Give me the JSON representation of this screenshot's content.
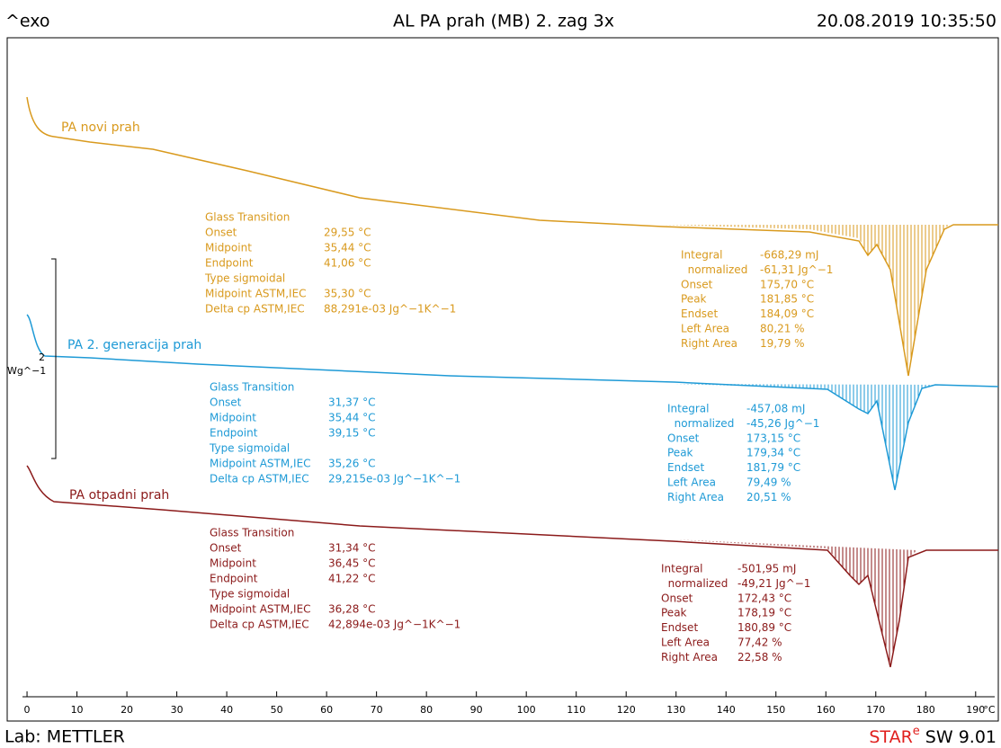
{
  "chart_data": {
    "type": "line",
    "title": "AL PA prah (MB) 2. zag 3x",
    "header_left": "^exo",
    "header_right": "20.08.2019 10:35:50",
    "xlim": [
      -1,
      194
    ],
    "xticks": [
      0,
      10,
      20,
      30,
      40,
      50,
      60,
      70,
      80,
      90,
      100,
      110,
      120,
      130,
      140,
      150,
      160,
      170,
      180,
      190
    ],
    "x_unit": "°C",
    "scale_bar": {
      "value": "2",
      "unit": "Wg^−1"
    },
    "series": [
      {
        "name": "PA novi prah",
        "color": "#d99a1e",
        "glass_transition": [
          [
            "Glass Transition",
            ""
          ],
          [
            "Onset",
            "29,55 °C"
          ],
          [
            "Midpoint",
            "35,44 °C"
          ],
          [
            "Endpoint",
            "41,06 °C"
          ],
          [
            "Type sigmoidal",
            ""
          ],
          [
            "Midpoint ASTM,IEC",
            "35,30 °C"
          ],
          [
            "Delta cp ASTM,IEC",
            "88,291e-03 Jg^−1K^−1"
          ]
        ],
        "integral": [
          [
            "Integral",
            "-668,29 mJ"
          ],
          [
            "  normalized",
            "-61,31 Jg^−1"
          ],
          [
            "Onset",
            "175,70 °C"
          ],
          [
            "Peak",
            "181,85 °C"
          ],
          [
            "Endset",
            "184,09 °C"
          ],
          [
            "Left Area",
            "80,21 %"
          ],
          [
            "Right Area",
            "19,79 %"
          ]
        ]
      },
      {
        "name": "PA 2. generacija prah",
        "color": "#1e9ad6",
        "glass_transition": [
          [
            "Glass Transition",
            ""
          ],
          [
            "Onset",
            "31,37 °C"
          ],
          [
            "Midpoint",
            "35,44 °C"
          ],
          [
            "Endpoint",
            "39,15 °C"
          ],
          [
            "Type sigmoidal",
            ""
          ],
          [
            "Midpoint ASTM,IEC",
            "35,26 °C"
          ],
          [
            "Delta cp ASTM,IEC",
            "29,215e-03 Jg^−1K^−1"
          ]
        ],
        "integral": [
          [
            "Integral",
            "-457,08 mJ"
          ],
          [
            "  normalized",
            "-45,26 Jg^−1"
          ],
          [
            "Onset",
            "173,15 °C"
          ],
          [
            "Peak",
            "179,34 °C"
          ],
          [
            "Endset",
            "181,79 °C"
          ],
          [
            "Left Area",
            "79,49 %"
          ],
          [
            "Right Area",
            "20,51 %"
          ]
        ]
      },
      {
        "name": "PA otpadni prah",
        "color": "#8b1a1a",
        "glass_transition": [
          [
            "Glass Transition",
            ""
          ],
          [
            "Onset",
            "31,34 °C"
          ],
          [
            "Midpoint",
            "36,45 °C"
          ],
          [
            "Endpoint",
            "41,22 °C"
          ],
          [
            "Type sigmoidal",
            ""
          ],
          [
            "Midpoint ASTM,IEC",
            "36,28 °C"
          ],
          [
            "Delta cp ASTM,IEC",
            "42,894e-03 Jg^−1K^−1"
          ]
        ],
        "integral": [
          [
            "Integral",
            "-501,95 mJ"
          ],
          [
            "  normalized",
            "-49,21 Jg^−1"
          ],
          [
            "Onset",
            "172,43 °C"
          ],
          [
            "Peak",
            "178,19 °C"
          ],
          [
            "Endset",
            "180,89 °C"
          ],
          [
            "Left Area",
            "77,42 %"
          ],
          [
            "Right Area",
            "22,58 %"
          ]
        ]
      }
    ]
  },
  "footer": {
    "lab": "Lab: METTLER",
    "software": [
      "STAR",
      "e",
      " SW 9.01"
    ]
  }
}
